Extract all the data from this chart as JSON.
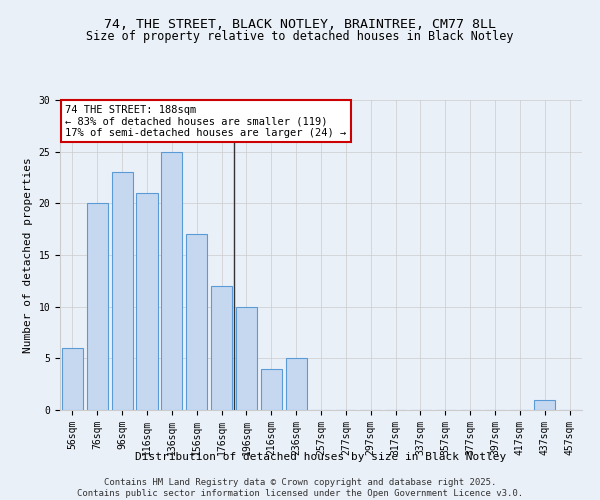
{
  "title1": "74, THE STREET, BLACK NOTLEY, BRAINTREE, CM77 8LL",
  "title2": "Size of property relative to detached houses in Black Notley",
  "xlabel": "Distribution of detached houses by size in Black Notley",
  "ylabel": "Number of detached properties",
  "categories": [
    "56sqm",
    "76sqm",
    "96sqm",
    "116sqm",
    "136sqm",
    "156sqm",
    "176sqm",
    "196sqm",
    "216sqm",
    "236sqm",
    "257sqm",
    "277sqm",
    "297sqm",
    "317sqm",
    "337sqm",
    "357sqm",
    "377sqm",
    "397sqm",
    "417sqm",
    "437sqm",
    "457sqm"
  ],
  "values": [
    6,
    20,
    23,
    21,
    25,
    17,
    12,
    10,
    4,
    5,
    0,
    0,
    0,
    0,
    0,
    0,
    0,
    0,
    0,
    1,
    0
  ],
  "bar_color": "#c5d8f0",
  "bar_edge_color": "#5b9bd5",
  "annotation_box_text": "74 THE STREET: 188sqm\n← 83% of detached houses are smaller (119)\n17% of semi-detached houses are larger (24) →",
  "annotation_box_color": "#ffffff",
  "annotation_box_edge_color": "#cc0000",
  "vline_color": "#333333",
  "ylim": [
    0,
    30
  ],
  "yticks": [
    0,
    5,
    10,
    15,
    20,
    25,
    30
  ],
  "grid_color": "#cccccc",
  "bg_color": "#eaf0f8",
  "footer_line1": "Contains HM Land Registry data © Crown copyright and database right 2025.",
  "footer_line2": "Contains public sector information licensed under the Open Government Licence v3.0.",
  "title_fontsize": 9.5,
  "subtitle_fontsize": 8.5,
  "axis_label_fontsize": 8,
  "tick_fontsize": 7,
  "footer_fontsize": 6.5,
  "annot_fontsize": 7.5
}
